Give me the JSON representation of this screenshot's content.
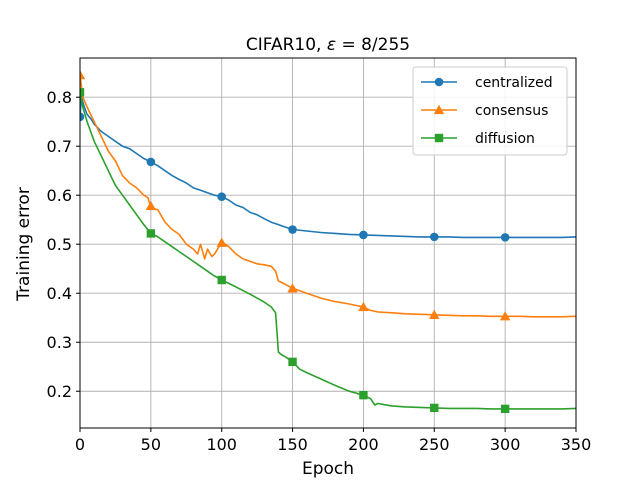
{
  "chart_data": {
    "type": "line",
    "title_prefix": "CIFAR10, ",
    "title_symbol": "ε",
    "title_suffix": " = 8/255",
    "title": "CIFAR10, ε = 8/255",
    "xlabel": "Epoch",
    "ylabel": "Training error",
    "xlim": [
      0,
      350
    ],
    "ylim": [
      0.125,
      0.88
    ],
    "xticks": [
      0,
      50,
      100,
      150,
      200,
      250,
      300,
      350
    ],
    "yticks": [
      0.2,
      0.3,
      0.4,
      0.5,
      0.6,
      0.7,
      0.8
    ],
    "xtick_labels": [
      "0",
      "50",
      "100",
      "150",
      "200",
      "250",
      "300",
      "350"
    ],
    "ytick_labels": [
      "0.2",
      "0.3",
      "0.4",
      "0.5",
      "0.6",
      "0.7",
      "0.8"
    ],
    "grid": true,
    "legend_position": "top-right",
    "series": [
      {
        "name": "centralized",
        "color": "#1f77b4",
        "marker": "circle",
        "x": [
          0,
          1,
          3,
          5,
          8,
          10,
          15,
          20,
          25,
          30,
          35,
          40,
          45,
          50,
          55,
          60,
          65,
          70,
          75,
          80,
          85,
          90,
          95,
          100,
          105,
          110,
          115,
          120,
          125,
          130,
          135,
          140,
          145,
          150,
          160,
          170,
          180,
          190,
          200,
          210,
          220,
          230,
          240,
          250,
          260,
          270,
          280,
          290,
          300,
          310,
          320,
          330,
          340,
          350
        ],
        "values": [
          0.76,
          0.8,
          0.78,
          0.765,
          0.755,
          0.745,
          0.73,
          0.72,
          0.71,
          0.7,
          0.695,
          0.685,
          0.675,
          0.668,
          0.66,
          0.65,
          0.64,
          0.632,
          0.625,
          0.615,
          0.61,
          0.605,
          0.6,
          0.597,
          0.59,
          0.58,
          0.575,
          0.565,
          0.56,
          0.552,
          0.545,
          0.54,
          0.535,
          0.53,
          0.527,
          0.524,
          0.522,
          0.52,
          0.519,
          0.518,
          0.517,
          0.516,
          0.515,
          0.515,
          0.515,
          0.514,
          0.514,
          0.514,
          0.514,
          0.514,
          0.514,
          0.514,
          0.514,
          0.515
        ],
        "marker_x": [
          0,
          50,
          100,
          150,
          200,
          250,
          300
        ],
        "marker_values": [
          0.76,
          0.668,
          0.597,
          0.53,
          0.519,
          0.515,
          0.514
        ]
      },
      {
        "name": "consensus",
        "color": "#ff7f0e",
        "marker": "triangle",
        "x": [
          0,
          2,
          5,
          10,
          15,
          20,
          25,
          30,
          35,
          40,
          45,
          48,
          50,
          55,
          60,
          65,
          70,
          75,
          80,
          83,
          85,
          88,
          90,
          93,
          95,
          98,
          100,
          105,
          110,
          115,
          120,
          125,
          130,
          135,
          138,
          140,
          145,
          150,
          160,
          170,
          180,
          190,
          200,
          205,
          210,
          220,
          230,
          240,
          250,
          260,
          270,
          280,
          290,
          300,
          310,
          320,
          330,
          340,
          350
        ],
        "values": [
          0.845,
          0.8,
          0.78,
          0.75,
          0.72,
          0.69,
          0.67,
          0.64,
          0.625,
          0.615,
          0.6,
          0.595,
          0.575,
          0.57,
          0.545,
          0.53,
          0.52,
          0.5,
          0.49,
          0.48,
          0.5,
          0.47,
          0.49,
          0.475,
          0.48,
          0.495,
          0.505,
          0.495,
          0.48,
          0.47,
          0.465,
          0.46,
          0.458,
          0.455,
          0.445,
          0.425,
          0.418,
          0.41,
          0.4,
          0.39,
          0.383,
          0.378,
          0.372,
          0.365,
          0.362,
          0.36,
          0.358,
          0.357,
          0.356,
          0.355,
          0.354,
          0.354,
          0.353,
          0.353,
          0.353,
          0.352,
          0.352,
          0.352,
          0.353
        ],
        "marker_x": [
          0,
          50,
          100,
          150,
          200,
          250,
          300
        ],
        "marker_values": [
          0.845,
          0.578,
          0.503,
          0.41,
          0.372,
          0.356,
          0.353
        ]
      },
      {
        "name": "diffusion",
        "color": "#2ca02c",
        "marker": "square",
        "x": [
          0,
          2,
          5,
          10,
          15,
          20,
          25,
          30,
          35,
          40,
          45,
          50,
          55,
          60,
          65,
          70,
          75,
          80,
          85,
          90,
          95,
          100,
          110,
          120,
          125,
          130,
          135,
          138,
          140,
          142,
          145,
          150,
          155,
          160,
          170,
          180,
          190,
          200,
          205,
          208,
          210,
          220,
          230,
          240,
          250,
          260,
          270,
          280,
          290,
          300,
          310,
          320,
          330,
          340,
          350
        ],
        "values": [
          0.81,
          0.78,
          0.75,
          0.71,
          0.68,
          0.65,
          0.62,
          0.6,
          0.58,
          0.56,
          0.54,
          0.522,
          0.515,
          0.505,
          0.495,
          0.485,
          0.475,
          0.465,
          0.455,
          0.445,
          0.435,
          0.427,
          0.413,
          0.398,
          0.39,
          0.382,
          0.372,
          0.36,
          0.28,
          0.275,
          0.27,
          0.26,
          0.245,
          0.238,
          0.225,
          0.212,
          0.2,
          0.192,
          0.185,
          0.172,
          0.175,
          0.17,
          0.168,
          0.167,
          0.166,
          0.165,
          0.165,
          0.165,
          0.164,
          0.164,
          0.164,
          0.164,
          0.164,
          0.164,
          0.165
        ],
        "marker_x": [
          0,
          50,
          100,
          150,
          200,
          250,
          300
        ],
        "marker_values": [
          0.81,
          0.522,
          0.427,
          0.26,
          0.192,
          0.166,
          0.164
        ]
      }
    ]
  }
}
